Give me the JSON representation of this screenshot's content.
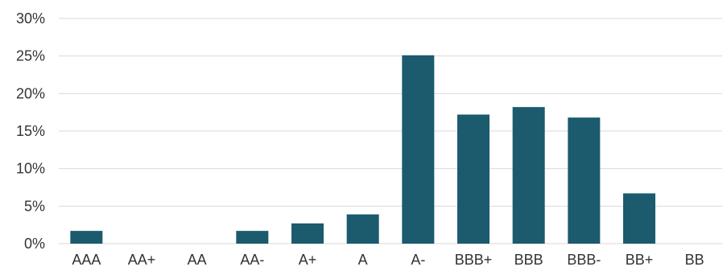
{
  "chart_data": {
    "type": "bar",
    "categories": [
      "AAA",
      "AA+",
      "AA",
      "AA-",
      "A+",
      "A",
      "A-",
      "BBB+",
      "BBB",
      "BBB-",
      "BB+",
      "BB"
    ],
    "values": [
      1.7,
      0,
      0,
      1.7,
      2.7,
      3.9,
      25.1,
      17.2,
      18.2,
      16.8,
      6.7,
      0
    ],
    "y_tick_labels": [
      "0%",
      "5%",
      "10%",
      "15%",
      "20%",
      "25%",
      "30%"
    ],
    "ylim": [
      0,
      30
    ],
    "ystep": 5,
    "grid": true,
    "colors": {
      "bar": "#1c5a6e",
      "grid": "#d9d9d9",
      "text": "#333333"
    }
  }
}
